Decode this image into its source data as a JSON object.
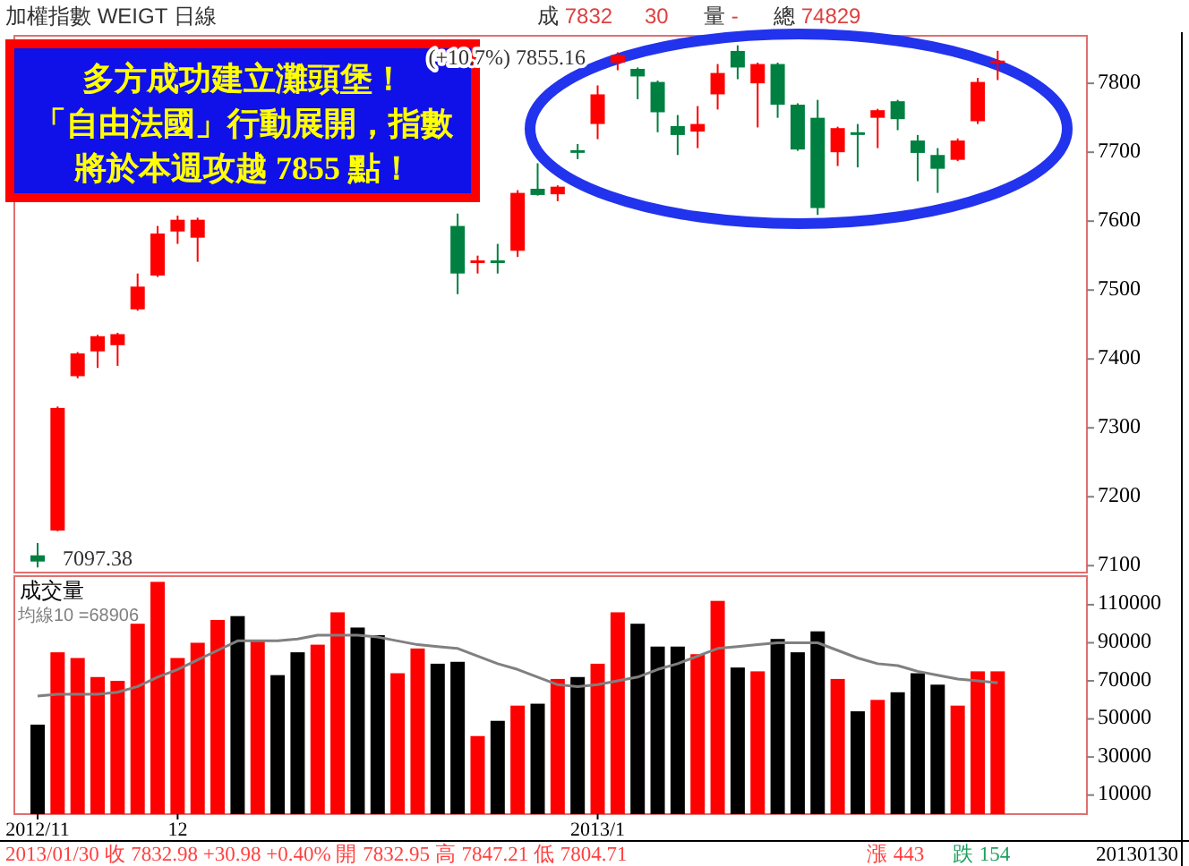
{
  "chart_data": [
    {
      "type": "candlestick",
      "title": "加權指數 WEIGT 日線",
      "categories": [
        "2012/11",
        null,
        null,
        null,
        null,
        null,
        null,
        "12",
        null,
        null,
        null,
        null,
        null,
        null,
        null,
        null,
        null,
        null,
        null,
        null,
        null,
        null,
        null,
        null,
        null,
        null,
        null,
        null,
        "2013/1",
        null,
        null,
        null,
        null,
        null,
        null,
        null,
        null,
        null,
        null,
        null,
        null,
        null,
        null,
        null,
        null,
        null,
        null,
        null,
        null
      ],
      "ohlc": [
        [
          7115,
          7133,
          7097.38,
          7106
        ],
        [
          7151,
          7331,
          7150,
          7329
        ],
        [
          7375,
          7410,
          7372,
          7408
        ],
        [
          7411,
          7435,
          7387,
          7433
        ],
        [
          7420,
          7438,
          7390,
          7436
        ],
        [
          7472,
          7524,
          7470,
          7505
        ],
        [
          7521,
          7593,
          7519,
          7582
        ],
        [
          7585,
          7608,
          7567,
          7602
        ],
        [
          7576,
          7605,
          7541,
          7602
        ],
        null,
        null,
        null,
        null,
        null,
        null,
        null,
        null,
        null,
        null,
        null,
        null,
        [
          7593,
          7611,
          7494,
          7524
        ],
        [
          7540,
          7550,
          7524,
          7543
        ],
        [
          7543,
          7567,
          7524,
          7540
        ],
        [
          7557,
          7645,
          7548,
          7641
        ],
        [
          7647,
          7684,
          7637,
          7638
        ],
        [
          7639,
          7652,
          7629,
          7650
        ],
        [
          7703,
          7712,
          7690,
          7701
        ],
        [
          7741,
          7797,
          7719,
          7784
        ],
        [
          7830,
          7845,
          7819,
          7841
        ],
        [
          7821,
          7823,
          7777,
          7810
        ],
        [
          7802,
          7804,
          7729,
          7758
        ],
        [
          7738,
          7754,
          7696,
          7725
        ],
        [
          7730,
          7767,
          7706,
          7741
        ],
        [
          7784,
          7828,
          7762,
          7815
        ],
        [
          7847,
          7855.16,
          7806,
          7823
        ],
        [
          7800,
          7830,
          7736,
          7828
        ],
        [
          7828,
          7830,
          7750,
          7769
        ],
        [
          7769,
          7771,
          7702,
          7704
        ],
        [
          7750,
          7776,
          7609,
          7619
        ],
        [
          7700,
          7737,
          7680,
          7735
        ],
        [
          7729,
          7741,
          7678,
          7727
        ],
        [
          7750,
          7763,
          7706,
          7761
        ],
        [
          7774,
          7776,
          7732,
          7748
        ],
        [
          7717,
          7725,
          7658,
          7699
        ],
        [
          7696,
          7706,
          7641,
          7676
        ],
        [
          7689,
          7720,
          7687,
          7717
        ],
        [
          7745,
          7808,
          7741,
          7802
        ],
        [
          7832.95,
          7847.21,
          7804.71,
          7832.98
        ]
      ],
      "colors": [
        "#008040",
        "#ff0000",
        "#ff0000",
        "#ff0000",
        "#ff0000",
        "#ff0000",
        "#ff0000",
        "#ff0000",
        "#ff0000",
        null,
        null,
        null,
        null,
        null,
        null,
        null,
        null,
        null,
        null,
        null,
        null,
        "#008040",
        "#ff0000",
        "#008040",
        "#ff0000",
        "#008040",
        "#ff0000",
        "#008040",
        "#ff0000",
        "#ff0000",
        "#008040",
        "#008040",
        "#008040",
        "#ff0000",
        "#ff0000",
        "#008040",
        "#ff0000",
        "#008040",
        "#008040",
        "#008040",
        "#ff0000",
        "#008040",
        "#ff0000",
        "#008040",
        "#008040",
        "#008040",
        "#ff0000",
        "#ff0000",
        "#ff0000"
      ],
      "ylim": [
        7090,
        7869
      ],
      "yticks": [
        7100,
        7200,
        7300,
        7400,
        7500,
        7600,
        7700,
        7800
      ],
      "tick_labels": "y",
      "annotations": [
        "成 7832",
        "30",
        "量 -",
        "總 74829",
        "多方成功建立灘頭堡！",
        "「自由法國」行動展開，指數",
        "將於本週攻越 7855 點！",
        "(+10.7%) 7855.16",
        "7097.38"
      ]
    },
    {
      "type": "bar",
      "title": "成交量",
      "categories": [
        "2012/11",
        null,
        null,
        null,
        null,
        null,
        null,
        "12",
        null,
        null,
        null,
        null,
        null,
        null,
        null,
        null,
        null,
        null,
        null,
        null,
        null,
        null,
        null,
        null,
        null,
        null,
        null,
        null,
        "2013/1",
        null,
        null,
        null,
        null,
        null,
        null,
        null,
        null,
        null,
        null,
        null,
        null,
        null,
        null,
        null,
        null,
        null,
        null,
        null,
        null
      ],
      "series": [
        {
          "type": "bar",
          "colors": [
            "#000000",
            "#ff0000",
            "#ff0000",
            "#ff0000",
            "#ff0000",
            "#ff0000",
            "#ff0000",
            "#ff0000",
            "#ff0000",
            "#ff0000",
            "#000000",
            "#ff0000",
            "#000000",
            "#000000",
            "#ff0000",
            "#ff0000",
            "#000000",
            "#000000",
            "#ff0000",
            "#ff0000",
            "#000000",
            "#000000",
            "#ff0000",
            "#000000",
            "#ff0000",
            "#000000",
            "#ff0000",
            "#000000",
            "#ff0000",
            "#ff0000",
            "#000000",
            "#000000",
            "#000000",
            "#ff0000",
            "#ff0000",
            "#000000",
            "#ff0000",
            "#000000",
            "#000000",
            "#000000",
            "#ff0000",
            "#000000",
            "#ff0000",
            "#000000",
            "#000000",
            "#000000",
            "#ff0000",
            "#ff0000",
            "#ff0000"
          ],
          "values": [
            47000,
            85000,
            82000,
            72000,
            70000,
            100000,
            122000,
            82000,
            90000,
            102000,
            104000,
            91000,
            73000,
            85000,
            89000,
            106000,
            98000,
            94000,
            74000,
            87000,
            79000,
            80000,
            41000,
            49000,
            57000,
            58000,
            71000,
            72000,
            79000,
            106000,
            100000,
            88000,
            88000,
            84000,
            112000,
            77000,
            75000,
            92000,
            85000,
            96000,
            71000,
            54000,
            60000,
            64000,
            74000,
            68000,
            57000,
            75000,
            75000
          ]
        },
        {
          "type": "line",
          "name": "均線10 =68906",
          "color": "#808080",
          "values": [
            62000,
            63000,
            63000,
            63000,
            64000,
            67000,
            72000,
            76000,
            81000,
            86000,
            91000,
            91000,
            91000,
            92000,
            94000,
            94000,
            94000,
            93000,
            91000,
            89000,
            88000,
            87000,
            83000,
            79000,
            76000,
            72000,
            68000,
            67000,
            68000,
            70000,
            72000,
            76000,
            79000,
            83000,
            87000,
            88000,
            89000,
            90000,
            90000,
            90000,
            86000,
            82000,
            79000,
            78000,
            75000,
            73000,
            71000,
            70000,
            68906
          ]
        }
      ],
      "ylim": [
        0,
        125000
      ],
      "yticks": [
        10000,
        30000,
        50000,
        70000,
        90000,
        110000
      ],
      "legend": "top left",
      "annotations": [
        "20130130",
        "2013/01/30 收 7832.98 +30.98 +0.40% 開 7832.95 高 7847.21 低 7804.71",
        "漲 443",
        "跌 154"
      ]
    }
  ]
}
